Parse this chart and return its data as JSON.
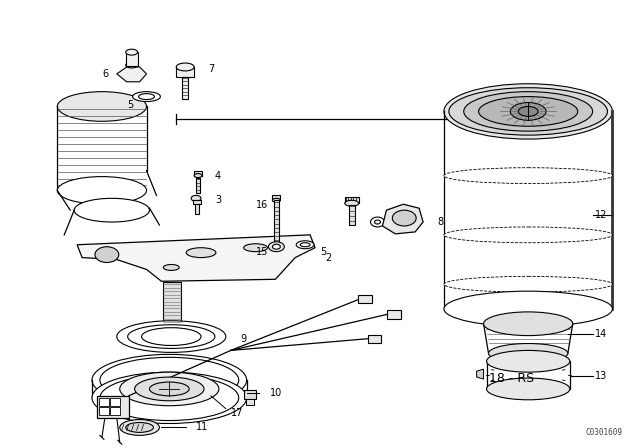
{
  "bg_color": "#ffffff",
  "line_color": "#000000",
  "fig_width": 6.4,
  "fig_height": 4.48,
  "dpi": 100,
  "watermark": "C0301609",
  "label_18rs": "18 - RS"
}
